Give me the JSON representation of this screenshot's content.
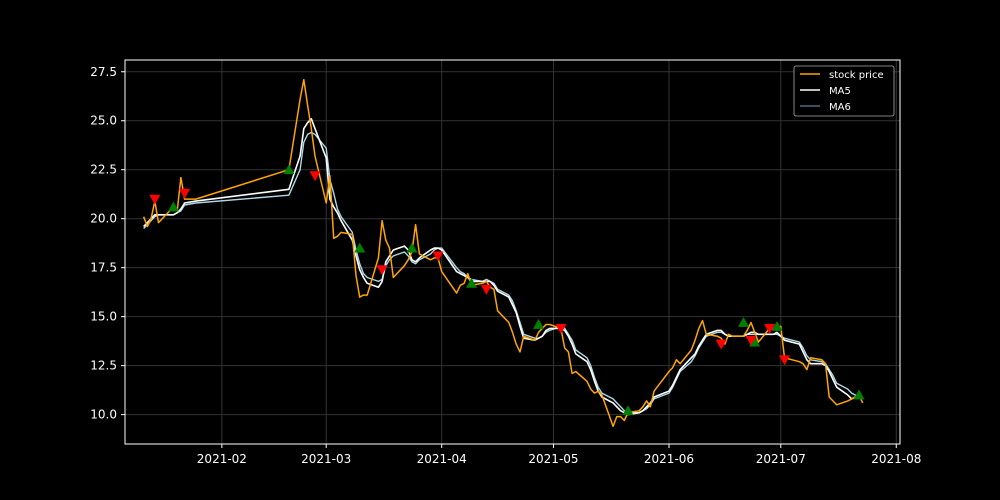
{
  "chart_data": {
    "type": "line",
    "title": "",
    "xlabel": "",
    "ylabel": "",
    "xlim": [
      "2021-01-06",
      "2021-08-02"
    ],
    "ylim": [
      8.5,
      28.1
    ],
    "grid": true,
    "legend_position": "top-right",
    "x_ticks": [
      "2021-02",
      "2021-03",
      "2021-04",
      "2021-05",
      "2021-06",
      "2021-07",
      "2021-08"
    ],
    "y_ticks": [
      "10.0",
      "12.5",
      "15.0",
      "17.5",
      "20.0",
      "22.5",
      "25.0",
      "27.5"
    ],
    "colors": {
      "background": "#000000",
      "stock_price": "#ffa500",
      "ma5": "#ffffff",
      "ma6": "#add8e6",
      "buy_marker": "#008000",
      "sell_marker": "#ff0000",
      "grid": "#333333",
      "axes": "#ffffff"
    },
    "series": [
      {
        "name": "stock price",
        "x": [
          "2021-01-11",
          "2021-01-12",
          "2021-01-13",
          "2021-01-14",
          "2021-01-15",
          "2021-01-19",
          "2021-01-20",
          "2021-01-21",
          "2021-01-22",
          "2021-01-25",
          "2021-02-19",
          "2021-02-22",
          "2021-02-23",
          "2021-02-24",
          "2021-02-25",
          "2021-02-26",
          "2021-03-01",
          "2021-03-02",
          "2021-03-03",
          "2021-03-04",
          "2021-03-05",
          "2021-03-08",
          "2021-03-09",
          "2021-03-10",
          "2021-03-11",
          "2021-03-12",
          "2021-03-15",
          "2021-03-16",
          "2021-03-17",
          "2021-03-18",
          "2021-03-19",
          "2021-03-22",
          "2021-03-23",
          "2021-03-24",
          "2021-03-25",
          "2021-03-26",
          "2021-03-29",
          "2021-03-30",
          "2021-03-31",
          "2021-04-01",
          "2021-04-05",
          "2021-04-06",
          "2021-04-07",
          "2021-04-08",
          "2021-04-09",
          "2021-04-12",
          "2021-04-13",
          "2021-04-14",
          "2021-04-15",
          "2021-04-16",
          "2021-04-19",
          "2021-04-20",
          "2021-04-21",
          "2021-04-22",
          "2021-04-23",
          "2021-04-26",
          "2021-04-27",
          "2021-04-28",
          "2021-04-29",
          "2021-04-30",
          "2021-05-03",
          "2021-05-04",
          "2021-05-05",
          "2021-05-06",
          "2021-05-07",
          "2021-05-10",
          "2021-05-11",
          "2021-05-12",
          "2021-05-13",
          "2021-05-14",
          "2021-05-17",
          "2021-05-18",
          "2021-05-19",
          "2021-05-20",
          "2021-05-21",
          "2021-05-24",
          "2021-05-25",
          "2021-05-26",
          "2021-05-27",
          "2021-05-28",
          "2021-06-01",
          "2021-06-02",
          "2021-06-03",
          "2021-06-04",
          "2021-06-07",
          "2021-06-08",
          "2021-06-09",
          "2021-06-10",
          "2021-06-11",
          "2021-06-14",
          "2021-06-15",
          "2021-06-16",
          "2021-06-17",
          "2021-06-18",
          "2021-06-21",
          "2021-06-22",
          "2021-06-23",
          "2021-06-24",
          "2021-06-25",
          "2021-06-28",
          "2021-06-29",
          "2021-06-30",
          "2021-07-01",
          "2021-07-02",
          "2021-07-06",
          "2021-07-07",
          "2021-07-08",
          "2021-07-09",
          "2021-07-12",
          "2021-07-13",
          "2021-07-14",
          "2021-07-15",
          "2021-07-16",
          "2021-07-19",
          "2021-07-20",
          "2021-07-21",
          "2021-07-22",
          "2021-07-23"
        ],
        "values": [
          20.1,
          19.6,
          20.0,
          20.9,
          19.8,
          20.6,
          20.4,
          22.1,
          21.0,
          21.0,
          22.5,
          26.1,
          27.1,
          25.8,
          24.6,
          23.2,
          20.8,
          22.2,
          19.0,
          19.1,
          19.3,
          19.2,
          17.1,
          16.0,
          16.1,
          16.1,
          18.0,
          19.9,
          18.9,
          18.5,
          17.0,
          17.6,
          17.9,
          18.3,
          19.7,
          18.2,
          17.9,
          18.0,
          18.0,
          17.3,
          16.2,
          16.6,
          16.7,
          17.2,
          16.6,
          16.7,
          16.8,
          16.5,
          16.4,
          15.3,
          14.7,
          14.2,
          13.6,
          13.2,
          14.0,
          13.8,
          14.2,
          14.4,
          14.6,
          14.6,
          14.4,
          13.4,
          13.2,
          12.1,
          12.2,
          11.7,
          11.3,
          11.1,
          11.2,
          11.0,
          9.4,
          9.9,
          9.9,
          9.7,
          10.1,
          10.2,
          10.4,
          10.7,
          10.4,
          11.2,
          12.2,
          12.4,
          12.8,
          12.6,
          13.3,
          13.8,
          14.4,
          14.8,
          14.1,
          14.0,
          13.9,
          13.6,
          14.1,
          14.0,
          14.0,
          14.3,
          14.7,
          14.2,
          13.7,
          14.4,
          14.4,
          14.5,
          14.5,
          12.9,
          12.7,
          12.6,
          12.3,
          12.9,
          12.8,
          12.6,
          10.9,
          10.7,
          10.5,
          10.7,
          10.8,
          10.9,
          11.0,
          10.6
        ]
      },
      {
        "name": "MA5",
        "x": [
          "2021-01-11",
          "2021-01-12",
          "2021-01-13",
          "2021-01-14",
          "2021-01-15",
          "2021-01-19",
          "2021-01-20",
          "2021-01-21",
          "2021-01-22",
          "2021-01-25",
          "2021-02-19",
          "2021-02-22",
          "2021-02-23",
          "2021-02-24",
          "2021-02-25",
          "2021-02-26",
          "2021-03-01",
          "2021-03-02",
          "2021-03-03",
          "2021-03-04",
          "2021-03-05",
          "2021-03-08",
          "2021-03-09",
          "2021-03-10",
          "2021-03-11",
          "2021-03-12",
          "2021-03-15",
          "2021-03-16",
          "2021-03-17",
          "2021-03-18",
          "2021-03-19",
          "2021-03-22",
          "2021-03-23",
          "2021-03-24",
          "2021-03-25",
          "2021-03-26",
          "2021-03-29",
          "2021-03-30",
          "2021-03-31",
          "2021-04-01",
          "2021-04-05",
          "2021-04-06",
          "2021-04-07",
          "2021-04-08",
          "2021-04-09",
          "2021-04-12",
          "2021-04-13",
          "2021-04-14",
          "2021-04-15",
          "2021-04-16",
          "2021-04-19",
          "2021-04-20",
          "2021-04-21",
          "2021-04-22",
          "2021-04-23",
          "2021-04-26",
          "2021-04-27",
          "2021-04-28",
          "2021-04-29",
          "2021-04-30",
          "2021-05-03",
          "2021-05-04",
          "2021-05-05",
          "2021-05-06",
          "2021-05-07",
          "2021-05-10",
          "2021-05-11",
          "2021-05-12",
          "2021-05-13",
          "2021-05-14",
          "2021-05-17",
          "2021-05-18",
          "2021-05-19",
          "2021-05-20",
          "2021-05-21",
          "2021-05-24",
          "2021-05-25",
          "2021-05-26",
          "2021-05-27",
          "2021-05-28",
          "2021-06-01",
          "2021-06-02",
          "2021-06-03",
          "2021-06-04",
          "2021-06-07",
          "2021-06-08",
          "2021-06-09",
          "2021-06-10",
          "2021-06-11",
          "2021-06-14",
          "2021-06-15",
          "2021-06-16",
          "2021-06-17",
          "2021-06-18",
          "2021-06-21",
          "2021-06-22",
          "2021-06-23",
          "2021-06-24",
          "2021-06-25",
          "2021-06-28",
          "2021-06-29",
          "2021-06-30",
          "2021-07-01",
          "2021-07-02",
          "2021-07-06",
          "2021-07-07",
          "2021-07-08",
          "2021-07-09",
          "2021-07-12",
          "2021-07-13",
          "2021-07-14",
          "2021-07-15",
          "2021-07-16",
          "2021-07-19",
          "2021-07-20",
          "2021-07-21",
          "2021-07-22",
          "2021-07-23"
        ],
        "values": [
          19.6,
          19.8,
          20.0,
          20.2,
          20.2,
          20.2,
          20.3,
          20.5,
          20.8,
          20.9,
          21.5,
          23.2,
          24.6,
          24.9,
          25.1,
          24.6,
          23.1,
          21.0,
          20.6,
          20.3,
          19.9,
          18.9,
          18.1,
          17.4,
          17.0,
          16.7,
          16.5,
          16.8,
          17.8,
          18.1,
          18.4,
          18.6,
          18.4,
          17.9,
          17.8,
          18.0,
          18.4,
          18.5,
          18.5,
          18.4,
          17.3,
          17.2,
          17.1,
          17.0,
          16.8,
          16.8,
          16.8,
          16.8,
          16.6,
          16.3,
          16.0,
          15.6,
          15.2,
          14.5,
          13.9,
          13.8,
          13.9,
          14.0,
          14.3,
          14.4,
          14.4,
          14.3,
          14.0,
          13.6,
          13.1,
          12.7,
          12.3,
          11.7,
          11.2,
          10.9,
          10.6,
          10.4,
          10.2,
          10.1,
          10.0,
          10.1,
          10.2,
          10.4,
          10.6,
          10.9,
          11.2,
          11.5,
          11.9,
          12.3,
          12.9,
          13.1,
          13.5,
          13.8,
          14.1,
          14.3,
          14.3,
          14.1,
          14.0,
          14.0,
          14.0,
          14.1,
          14.2,
          14.2,
          14.1,
          14.1,
          14.1,
          14.2,
          14.0,
          13.8,
          13.6,
          13.2,
          12.8,
          12.6,
          12.6,
          12.5,
          12.2,
          11.8,
          11.4,
          11.0,
          10.8,
          10.9,
          10.9,
          10.9
        ]
      },
      {
        "name": "MA6",
        "x": [
          "2021-01-11",
          "2021-01-12",
          "2021-01-13",
          "2021-01-14",
          "2021-01-15",
          "2021-01-19",
          "2021-01-20",
          "2021-01-21",
          "2021-01-22",
          "2021-01-25",
          "2021-02-19",
          "2021-02-22",
          "2021-02-23",
          "2021-02-24",
          "2021-02-25",
          "2021-02-26",
          "2021-03-01",
          "2021-03-02",
          "2021-03-03",
          "2021-03-04",
          "2021-03-05",
          "2021-03-08",
          "2021-03-09",
          "2021-03-10",
          "2021-03-11",
          "2021-03-12",
          "2021-03-15",
          "2021-03-16",
          "2021-03-17",
          "2021-03-18",
          "2021-03-19",
          "2021-03-22",
          "2021-03-23",
          "2021-03-24",
          "2021-03-25",
          "2021-03-26",
          "2021-03-29",
          "2021-03-30",
          "2021-03-31",
          "2021-04-01",
          "2021-04-05",
          "2021-04-06",
          "2021-04-07",
          "2021-04-08",
          "2021-04-09",
          "2021-04-12",
          "2021-04-13",
          "2021-04-14",
          "2021-04-15",
          "2021-04-16",
          "2021-04-19",
          "2021-04-20",
          "2021-04-21",
          "2021-04-22",
          "2021-04-23",
          "2021-04-26",
          "2021-04-27",
          "2021-04-28",
          "2021-04-29",
          "2021-04-30",
          "2021-05-03",
          "2021-05-04",
          "2021-05-05",
          "2021-05-06",
          "2021-05-07",
          "2021-05-10",
          "2021-05-11",
          "2021-05-12",
          "2021-05-13",
          "2021-05-14",
          "2021-05-17",
          "2021-05-18",
          "2021-05-19",
          "2021-05-20",
          "2021-05-21",
          "2021-05-24",
          "2021-05-25",
          "2021-05-26",
          "2021-05-27",
          "2021-05-28",
          "2021-06-01",
          "2021-06-02",
          "2021-06-03",
          "2021-06-04",
          "2021-06-07",
          "2021-06-08",
          "2021-06-09",
          "2021-06-10",
          "2021-06-11",
          "2021-06-14",
          "2021-06-15",
          "2021-06-16",
          "2021-06-17",
          "2021-06-18",
          "2021-06-21",
          "2021-06-22",
          "2021-06-23",
          "2021-06-24",
          "2021-06-25",
          "2021-06-28",
          "2021-06-29",
          "2021-06-30",
          "2021-07-01",
          "2021-07-02",
          "2021-07-06",
          "2021-07-07",
          "2021-07-08",
          "2021-07-09",
          "2021-07-12",
          "2021-07-13",
          "2021-07-14",
          "2021-07-15",
          "2021-07-16",
          "2021-07-19",
          "2021-07-20",
          "2021-07-21",
          "2021-07-22",
          "2021-07-23"
        ],
        "values": [
          19.5,
          19.7,
          19.9,
          20.1,
          20.2,
          20.2,
          20.3,
          20.4,
          20.7,
          20.8,
          21.2,
          22.5,
          23.9,
          24.3,
          24.4,
          24.3,
          23.6,
          22.0,
          21.3,
          20.5,
          20.1,
          19.3,
          18.4,
          17.7,
          17.2,
          17.0,
          16.8,
          16.9,
          17.6,
          17.9,
          18.1,
          18.3,
          18.1,
          17.8,
          17.7,
          17.9,
          18.2,
          18.4,
          18.5,
          18.5,
          17.5,
          17.3,
          17.2,
          17.0,
          16.9,
          16.8,
          16.9,
          16.8,
          16.7,
          16.4,
          16.1,
          15.8,
          15.3,
          14.7,
          14.1,
          13.9,
          13.9,
          14.0,
          14.2,
          14.3,
          14.5,
          14.4,
          14.1,
          13.8,
          13.3,
          12.9,
          12.5,
          11.9,
          11.4,
          11.1,
          10.8,
          10.6,
          10.4,
          10.2,
          10.1,
          10.1,
          10.2,
          10.3,
          10.5,
          10.8,
          11.1,
          11.4,
          11.8,
          12.2,
          12.7,
          13.0,
          13.4,
          13.7,
          14.0,
          14.2,
          14.2,
          14.1,
          14.0,
          14.0,
          14.0,
          14.1,
          14.1,
          14.1,
          14.1,
          14.1,
          14.1,
          14.1,
          14.0,
          13.9,
          13.7,
          13.4,
          13.0,
          12.8,
          12.7,
          12.6,
          12.3,
          12.0,
          11.6,
          11.3,
          11.1,
          11.0,
          10.9,
          10.9
        ]
      }
    ],
    "buy_signals": [
      {
        "x": "2021-01-19",
        "y": 20.6
      },
      {
        "x": "2021-02-19",
        "y": 22.5
      },
      {
        "x": "2021-03-10",
        "y": 18.5
      },
      {
        "x": "2021-03-24",
        "y": 18.5
      },
      {
        "x": "2021-04-09",
        "y": 16.7
      },
      {
        "x": "2021-04-27",
        "y": 14.6
      },
      {
        "x": "2021-05-21",
        "y": 10.2
      },
      {
        "x": "2021-06-21",
        "y": 14.7
      },
      {
        "x": "2021-06-24",
        "y": 13.7
      },
      {
        "x": "2021-06-30",
        "y": 14.5
      },
      {
        "x": "2021-07-22",
        "y": 11.0
      }
    ],
    "sell_signals": [
      {
        "x": "2021-01-14",
        "y": 21.0
      },
      {
        "x": "2021-01-22",
        "y": 21.3
      },
      {
        "x": "2021-02-26",
        "y": 22.2
      },
      {
        "x": "2021-03-16",
        "y": 17.4
      },
      {
        "x": "2021-03-31",
        "y": 18.1
      },
      {
        "x": "2021-04-13",
        "y": 16.4
      },
      {
        "x": "2021-05-03",
        "y": 14.4
      },
      {
        "x": "2021-06-15",
        "y": 13.6
      },
      {
        "x": "2021-06-23",
        "y": 13.8
      },
      {
        "x": "2021-06-28",
        "y": 14.4
      },
      {
        "x": "2021-07-02",
        "y": 12.8
      }
    ]
  }
}
